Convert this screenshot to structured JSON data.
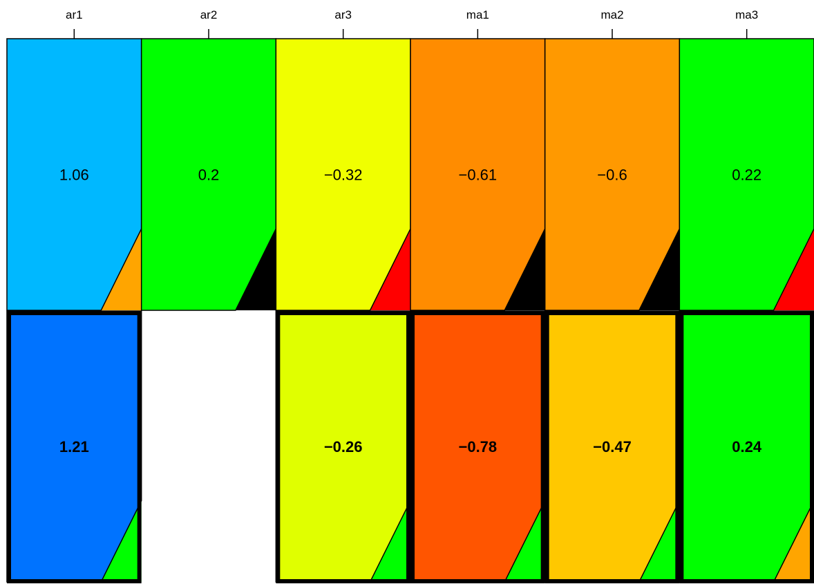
{
  "chart_data": {
    "type": "heatmap",
    "title": "",
    "xlabel": "",
    "ylabel": "",
    "columns": [
      "ar1",
      "ar2",
      "ar3",
      "ma1",
      "ma2",
      "ma3"
    ],
    "rows": [
      {
        "emphasized": false,
        "cells": [
          {
            "value": 1.06,
            "label": "1.06",
            "fill": "#00B8FF",
            "corner": "#FFA500"
          },
          {
            "value": 0.2,
            "label": "0.2",
            "fill": "#00FF00",
            "corner": "#000000"
          },
          {
            "value": -0.32,
            "label": "−0.32",
            "fill": "#F0FF00",
            "corner": "#FF0000"
          },
          {
            "value": -0.61,
            "label": "−0.61",
            "fill": "#FF8C00",
            "corner": "#000000"
          },
          {
            "value": -0.6,
            "label": "−0.6",
            "fill": "#FF9900",
            "corner": "#000000"
          },
          {
            "value": 0.22,
            "label": "0.22",
            "fill": "#00FF00",
            "corner": "#FF0000"
          }
        ]
      },
      {
        "emphasized": true,
        "cells": [
          {
            "value": 1.21,
            "label": "1.21",
            "fill": "#0073FF",
            "corner": "#00FF00"
          },
          null,
          {
            "value": -0.26,
            "label": "−0.26",
            "fill": "#E0FF00",
            "corner": "#00FF00"
          },
          {
            "value": -0.78,
            "label": "−0.78",
            "fill": "#FF5500",
            "corner": "#00FF00"
          },
          {
            "value": -0.47,
            "label": "−0.47",
            "fill": "#FFC800",
            "corner": "#00FF00"
          },
          {
            "value": 0.24,
            "label": "0.24",
            "fill": "#00FF00",
            "corner": "#FFA500"
          }
        ]
      }
    ],
    "legend": "none",
    "grid": false
  }
}
